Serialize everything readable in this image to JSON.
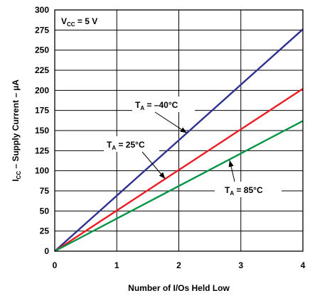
{
  "chart_data": {
    "type": "line",
    "title": "",
    "xlabel": "Number of I/Os Held Low",
    "ylabel": {
      "main": "I",
      "sub": "CC",
      "rest": " – Supply Current – µA"
    },
    "xlim": [
      0,
      4
    ],
    "ylim": [
      0,
      300
    ],
    "xticks": [
      0,
      1,
      2,
      3,
      4
    ],
    "yticks": [
      0,
      25,
      50,
      75,
      100,
      125,
      150,
      175,
      200,
      225,
      250,
      275,
      300
    ],
    "grid": true,
    "series": [
      {
        "name": "TA = –40°C",
        "color": "#2e3192",
        "x": [
          0,
          1,
          2,
          3,
          4
        ],
        "y": [
          0,
          69,
          138,
          207,
          276
        ]
      },
      {
        "name": "TA = 25°C",
        "color": "#ed1c24",
        "x": [
          0,
          1,
          2,
          3,
          4
        ],
        "y": [
          0,
          50.5,
          101,
          151.5,
          202
        ]
      },
      {
        "name": "TA = 85°C",
        "color": "#009444",
        "x": [
          0,
          1,
          2,
          3,
          4
        ],
        "y": [
          0,
          40.5,
          81,
          121.5,
          162
        ]
      }
    ],
    "condition": {
      "main": "V",
      "sub": "CC",
      "rest": " = 5 V"
    },
    "annotations": [
      {
        "series": "TA = –40°C",
        "main": "T",
        "sub": "A",
        "rest": " = –40°C",
        "point_to": [
          2.13,
          147
        ]
      },
      {
        "series": "TA = 25°C",
        "main": "T",
        "sub": "A",
        "rest": " = 25°C",
        "point_to": [
          1.78,
          90
        ]
      },
      {
        "series": "TA = 85°C",
        "main": "T",
        "sub": "A",
        "rest": " = 85°C",
        "point_to": [
          2.82,
          113
        ]
      }
    ]
  }
}
